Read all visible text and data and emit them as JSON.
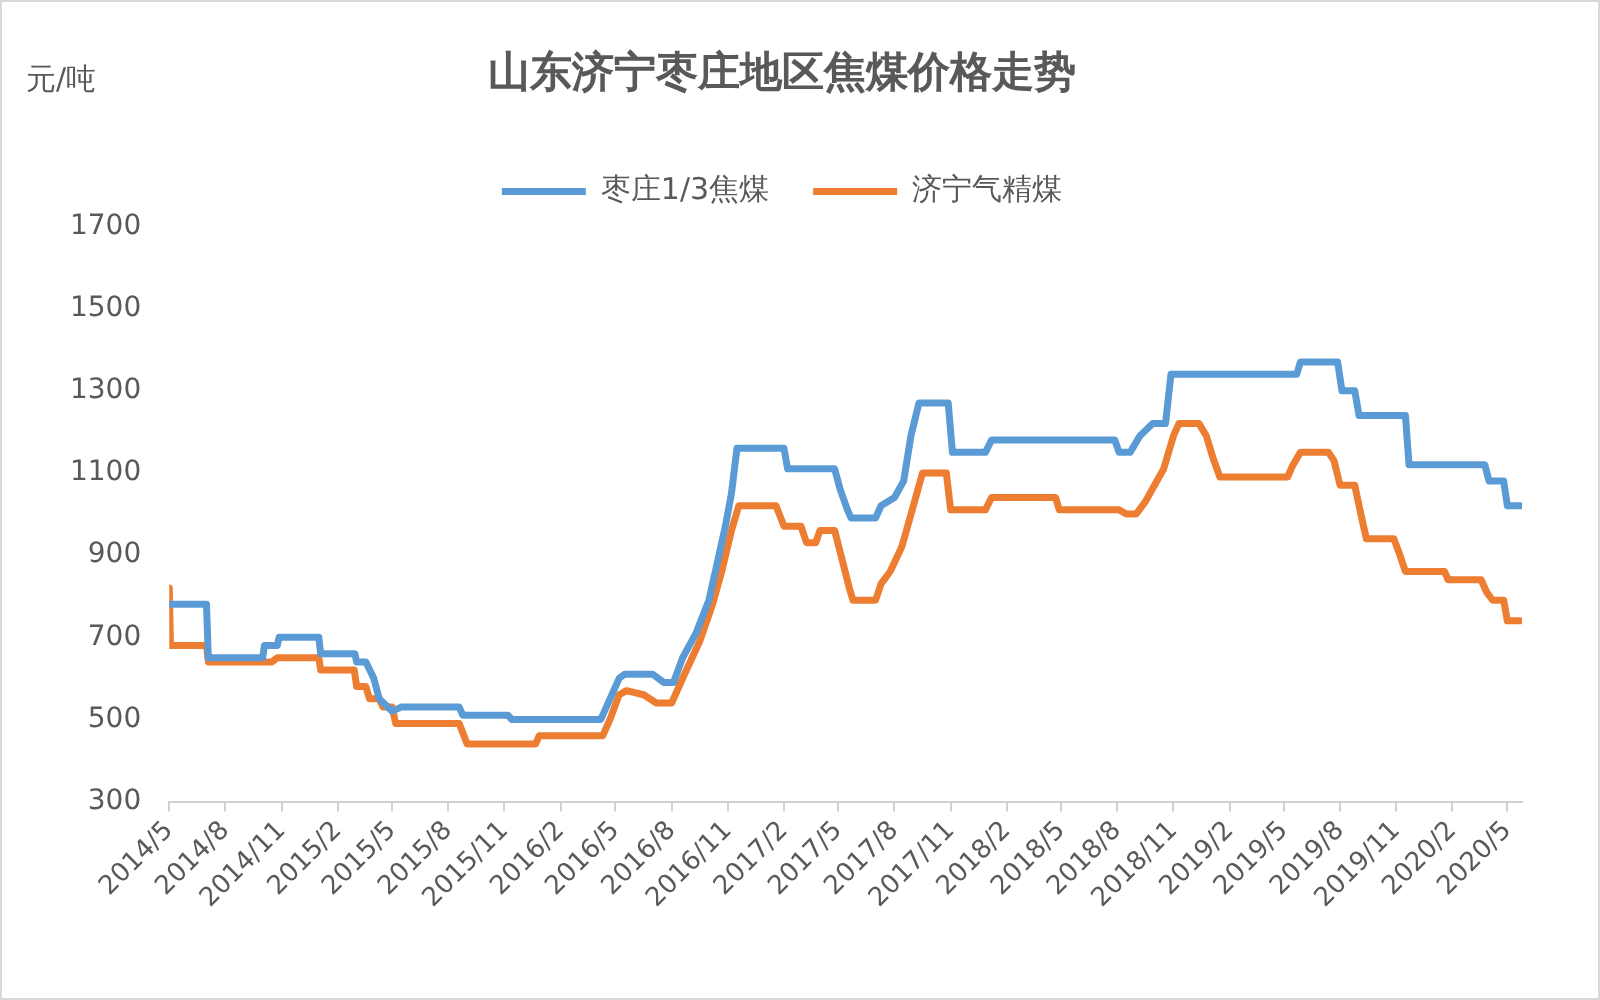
{
  "chart_data": {
    "type": "line",
    "title": "山东济宁枣庄地区焦煤价格走势",
    "ylabel": "元/吨",
    "legend": "top",
    "xlim": [
      "2014-05-01",
      "2020-05-25"
    ],
    "xticks": [
      {
        "value": "2014-05",
        "label": "2014/5"
      },
      {
        "value": "2014-08",
        "label": "2014/8"
      },
      {
        "value": "2014-11",
        "label": "2014/11"
      },
      {
        "value": "2015-02",
        "label": "2015/2"
      },
      {
        "value": "2015-05",
        "label": "2015/5"
      },
      {
        "value": "2015-08",
        "label": "2015/8"
      },
      {
        "value": "2015-11",
        "label": "2015/11"
      },
      {
        "value": "2016-02",
        "label": "2016/2"
      },
      {
        "value": "2016-05",
        "label": "2016/5"
      },
      {
        "value": "2016-08",
        "label": "2016/8"
      },
      {
        "value": "2016-11",
        "label": "2016/11"
      },
      {
        "value": "2017-02",
        "label": "2017/2"
      },
      {
        "value": "2017-05",
        "label": "2017/5"
      },
      {
        "value": "2017-08",
        "label": "2017/8"
      },
      {
        "value": "2017-11",
        "label": "2017/11"
      },
      {
        "value": "2018-02",
        "label": "2018/2"
      },
      {
        "value": "2018-05",
        "label": "2018/5"
      },
      {
        "value": "2018-08",
        "label": "2018/8"
      },
      {
        "value": "2018-11",
        "label": "2018/11"
      },
      {
        "value": "2019-02",
        "label": "2019/2"
      },
      {
        "value": "2019-05",
        "label": "2019/5"
      },
      {
        "value": "2019-08",
        "label": "2019/8"
      },
      {
        "value": "2019-11",
        "label": "2019/11"
      },
      {
        "value": "2020-02",
        "label": "2020/2"
      },
      {
        "value": "2020-05",
        "label": "2020/5"
      }
    ],
    "ylim": [
      300,
      1700
    ],
    "yticks": [
      300,
      500,
      700,
      900,
      1100,
      1300,
      1500,
      1700
    ],
    "series": [
      {
        "name": "枣庄1/3焦煤",
        "color": "#5b9bd5",
        "x": [
          "2014-05-01",
          "2014-07-01",
          "2014-07-04",
          "2014-10-01",
          "2014-10-04",
          "2014-10-25",
          "2014-10-28",
          "2015-01-01",
          "2015-01-04",
          "2015-03-01",
          "2015-03-04",
          "2015-03-19",
          "2015-04-01",
          "2015-04-10",
          "2015-05-01",
          "2015-05-16",
          "2015-08-19",
          "2015-08-25",
          "2015-11-07",
          "2015-11-13",
          "2016-04-07",
          "2016-04-22",
          "2016-05-07",
          "2016-05-16",
          "2016-07-01",
          "2016-07-19",
          "2016-08-04",
          "2016-08-19",
          "2016-09-10",
          "2016-10-01",
          "2016-10-13",
          "2016-10-28",
          "2016-11-07",
          "2016-11-16",
          "2017-02-01",
          "2017-02-07",
          "2017-04-25",
          "2017-05-04",
          "2017-05-16",
          "2017-05-22",
          "2017-07-01",
          "2017-07-10",
          "2017-08-01",
          "2017-08-16",
          "2017-08-28",
          "2017-09-10",
          "2017-10-28",
          "2017-11-04",
          "2017-12-28",
          "2018-01-07",
          "2018-07-28",
          "2018-08-04",
          "2018-08-22",
          "2018-09-07",
          "2018-09-28",
          "2018-10-19",
          "2018-10-28",
          "2019-05-22",
          "2019-05-28",
          "2019-07-28",
          "2019-08-04",
          "2019-08-25",
          "2019-09-01",
          "2019-11-16",
          "2019-11-22",
          "2020-03-25",
          "2020-04-01",
          "2020-04-25",
          "2020-05-01",
          "2020-05-22"
        ],
        "values": [
          780,
          780,
          650,
          650,
          680,
          680,
          700,
          700,
          660,
          660,
          640,
          640,
          600,
          550,
          520,
          530,
          530,
          510,
          510,
          500,
          500,
          550,
          600,
          610,
          610,
          590,
          590,
          650,
          710,
          790,
          870,
          970,
          1050,
          1160,
          1160,
          1110,
          1110,
          1060,
          1010,
          990,
          990,
          1020,
          1040,
          1080,
          1190,
          1270,
          1270,
          1150,
          1150,
          1180,
          1180,
          1150,
          1150,
          1190,
          1220,
          1220,
          1340,
          1340,
          1370,
          1370,
          1300,
          1300,
          1240,
          1240,
          1120,
          1120,
          1080,
          1080,
          1020,
          1020
        ]
      },
      {
        "name": "济宁气精煤",
        "color": "#ed7d31",
        "x": [
          "2014-05-01",
          "2014-05-03",
          "2014-07-01",
          "2014-07-04",
          "2014-10-16",
          "2014-10-25",
          "2015-01-01",
          "2015-01-04",
          "2015-02-28",
          "2015-03-04",
          "2015-03-19",
          "2015-03-25",
          "2015-04-10",
          "2015-04-16",
          "2015-05-01",
          "2015-05-07",
          "2015-08-19",
          "2015-09-01",
          "2015-12-22",
          "2015-12-28",
          "2016-04-10",
          "2016-04-22",
          "2016-05-07",
          "2016-05-19",
          "2016-06-16",
          "2016-07-07",
          "2016-08-01",
          "2016-08-22",
          "2016-09-16",
          "2016-10-07",
          "2016-10-22",
          "2016-11-07",
          "2016-11-19",
          "2017-01-19",
          "2017-02-01",
          "2017-03-01",
          "2017-03-10",
          "2017-03-25",
          "2017-04-01",
          "2017-04-25",
          "2017-05-07",
          "2017-05-19",
          "2017-05-25",
          "2017-07-01",
          "2017-07-10",
          "2017-07-25",
          "2017-08-13",
          "2017-09-01",
          "2017-09-16",
          "2017-10-25",
          "2017-11-01",
          "2017-12-28",
          "2018-01-07",
          "2018-04-22",
          "2018-04-28",
          "2018-08-04",
          "2018-08-16",
          "2018-09-01",
          "2018-09-16",
          "2018-10-01",
          "2018-10-16",
          "2018-11-01",
          "2018-11-10",
          "2018-12-13",
          "2018-12-25",
          "2019-01-04",
          "2019-01-16",
          "2019-05-07",
          "2019-05-16",
          "2019-05-28",
          "2019-07-13",
          "2019-07-22",
          "2019-08-01",
          "2019-08-25",
          "2019-09-04",
          "2019-09-13",
          "2019-10-28",
          "2019-11-07",
          "2019-11-16",
          "2020-01-19",
          "2020-01-25",
          "2020-03-19",
          "2020-03-28",
          "2020-04-07",
          "2020-04-25",
          "2020-05-01",
          "2020-05-22"
        ],
        "values": [
          820,
          680,
          680,
          640,
          640,
          650,
          650,
          620,
          620,
          580,
          580,
          550,
          550,
          530,
          530,
          490,
          490,
          440,
          440,
          460,
          460,
          500,
          560,
          570,
          560,
          540,
          540,
          610,
          690,
          780,
          860,
          960,
          1020,
          1020,
          970,
          970,
          930,
          930,
          960,
          960,
          890,
          820,
          790,
          790,
          830,
          860,
          920,
          1020,
          1100,
          1100,
          1010,
          1010,
          1040,
          1040,
          1010,
          1010,
          1000,
          1000,
          1030,
          1070,
          1110,
          1190,
          1220,
          1220,
          1190,
          1140,
          1090,
          1090,
          1120,
          1150,
          1150,
          1130,
          1070,
          1070,
          1000,
          940,
          940,
          900,
          860,
          860,
          840,
          840,
          810,
          790,
          790,
          740,
          740
        ]
      }
    ]
  }
}
